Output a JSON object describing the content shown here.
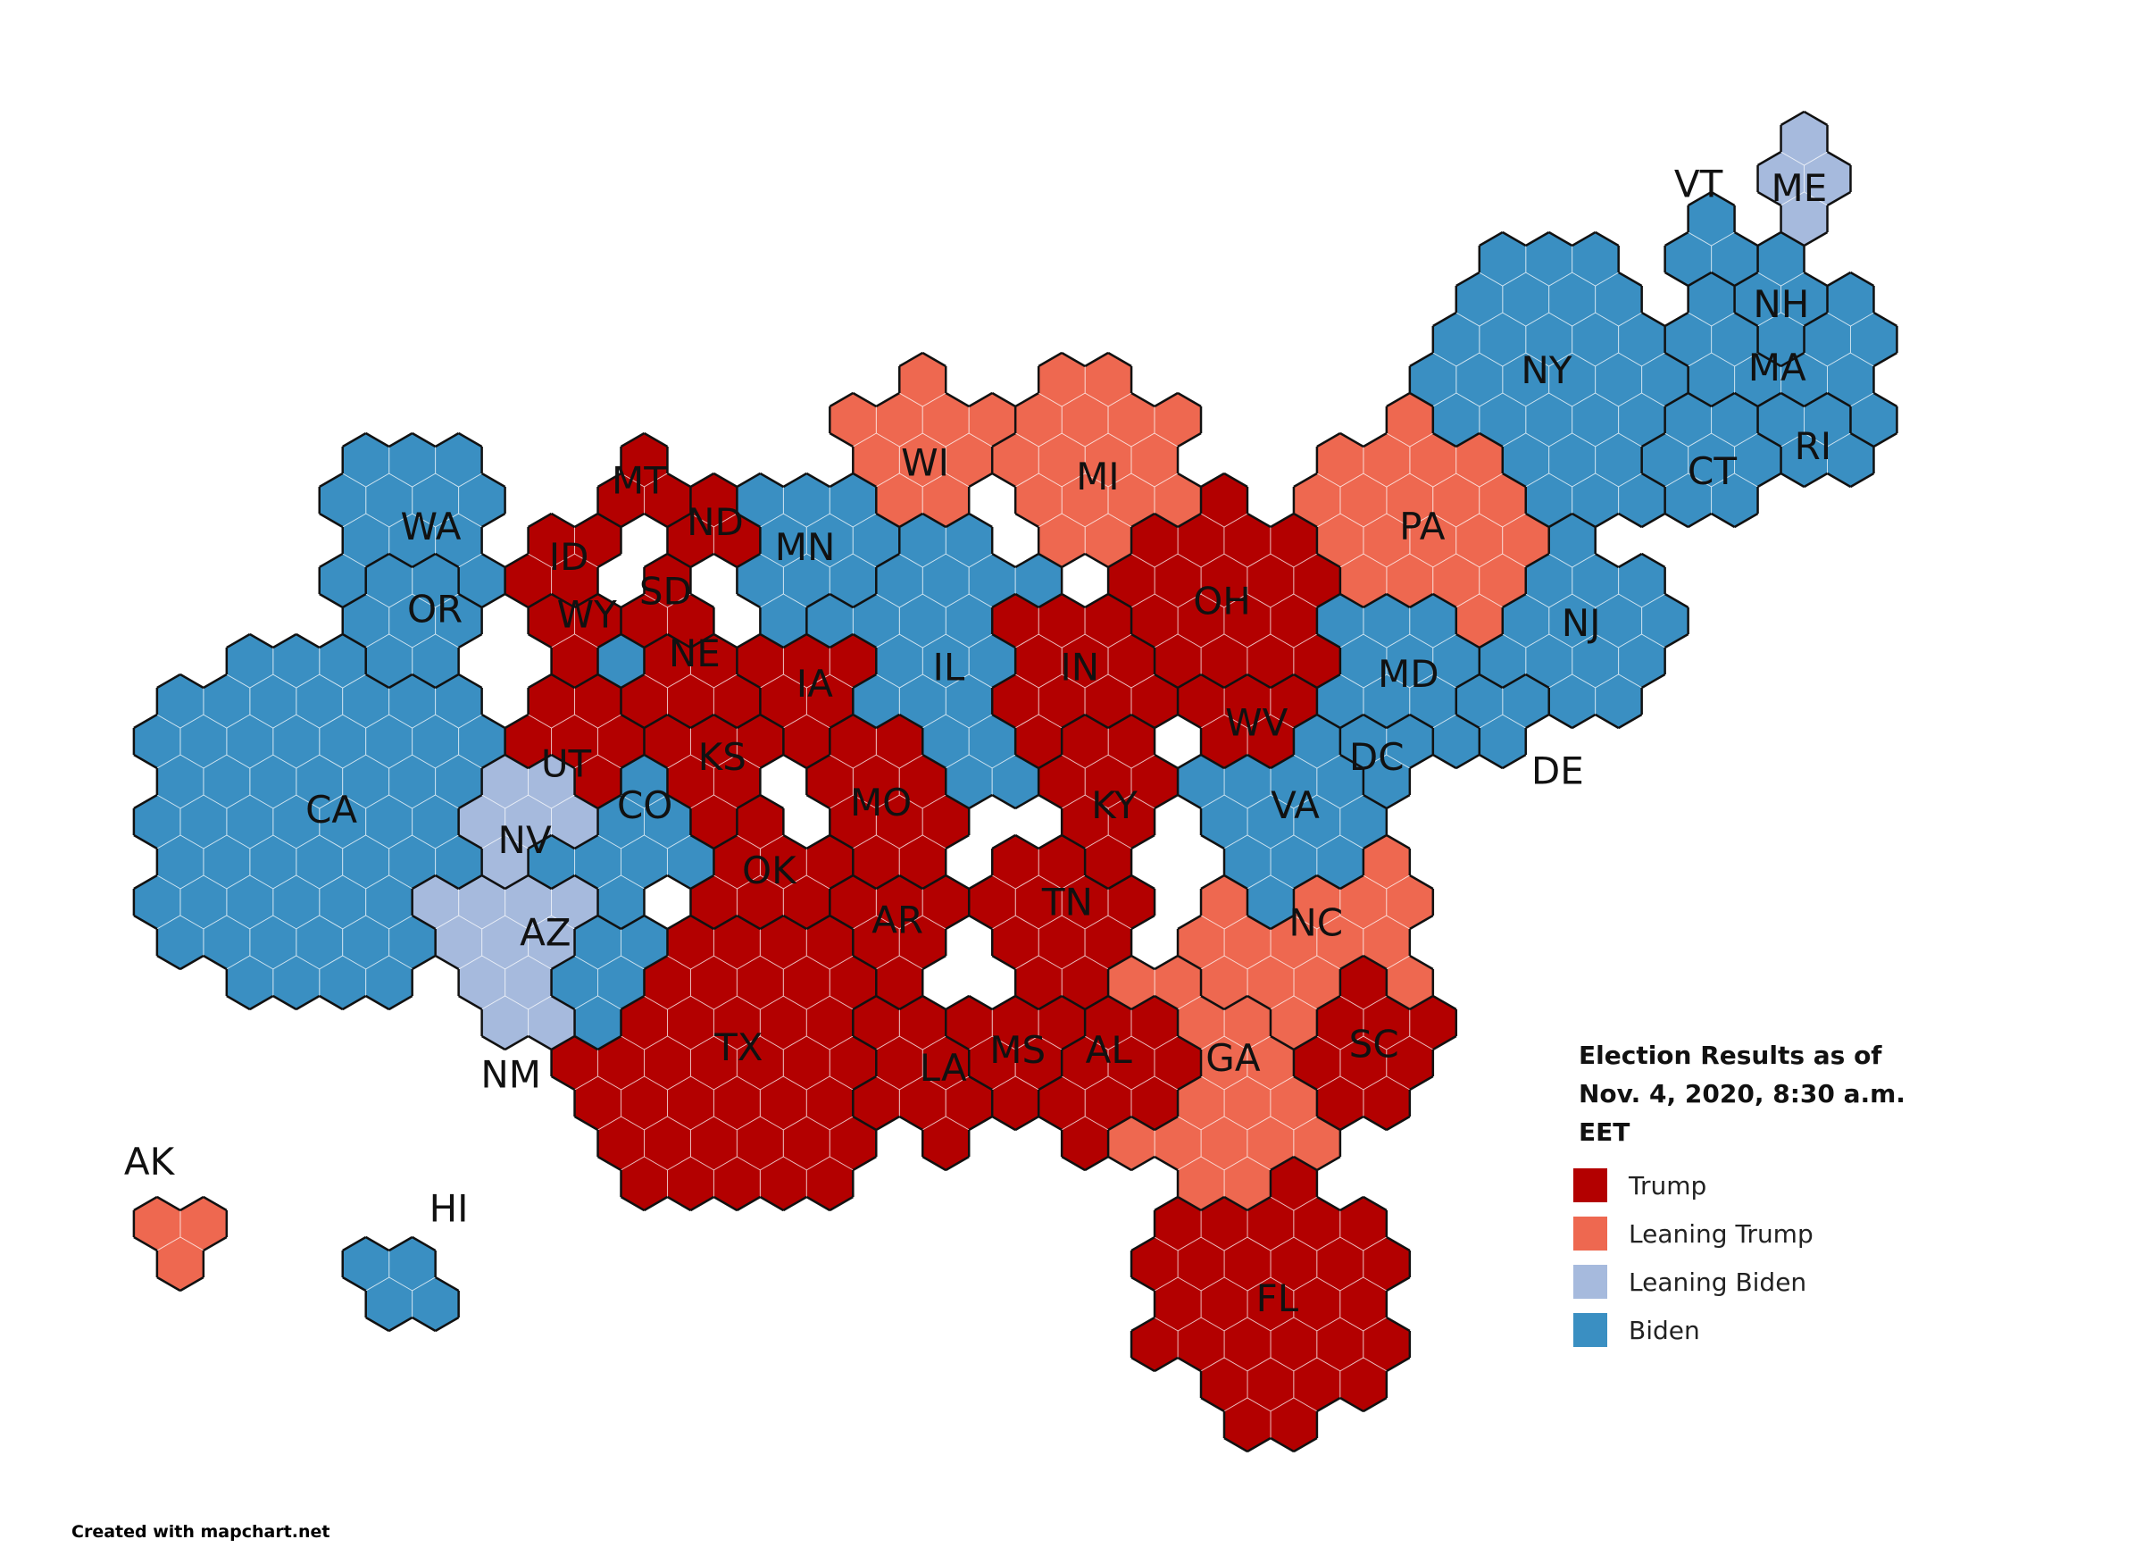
{
  "title": "Election Results as of Nov. 4, 2020, 8:30 a.m. EET",
  "legend": [
    {
      "name": "Trump",
      "color": "#b30000"
    },
    {
      "name": "Leaning Trump",
      "color": "#ee6850"
    },
    {
      "name": "Leaning Biden",
      "color": "#a6badd"
    },
    {
      "name": "Biden",
      "color": "#3a8fc2"
    }
  ],
  "states": [
    {
      "label": "WA",
      "result": "Biden"
    },
    {
      "label": "OR",
      "result": "Biden"
    },
    {
      "label": "CA",
      "result": "Biden"
    },
    {
      "label": "NV",
      "result": "Leaning Biden"
    },
    {
      "label": "AZ",
      "result": "Leaning Biden"
    },
    {
      "label": "ID",
      "result": "Trump"
    },
    {
      "label": "MT",
      "result": "Trump"
    },
    {
      "label": "WY",
      "result": "Trump"
    },
    {
      "label": "UT",
      "result": "Trump"
    },
    {
      "label": "CO",
      "result": "Biden"
    },
    {
      "label": "NM",
      "result": "Biden"
    },
    {
      "label": "ND",
      "result": "Trump"
    },
    {
      "label": "SD",
      "result": "Trump"
    },
    {
      "label": "NE",
      "result": "Trump"
    },
    {
      "label": "KS",
      "result": "Trump"
    },
    {
      "label": "OK",
      "result": "Trump"
    },
    {
      "label": "TX",
      "result": "Trump"
    },
    {
      "label": "MN",
      "result": "Biden"
    },
    {
      "label": "IA",
      "result": "Trump"
    },
    {
      "label": "MO",
      "result": "Trump"
    },
    {
      "label": "AR",
      "result": "Trump"
    },
    {
      "label": "LA",
      "result": "Trump"
    },
    {
      "label": "WI",
      "result": "Leaning Trump"
    },
    {
      "label": "IL",
      "result": "Biden"
    },
    {
      "label": "MI",
      "result": "Leaning Trump"
    },
    {
      "label": "IN",
      "result": "Trump"
    },
    {
      "label": "KY",
      "result": "Trump"
    },
    {
      "label": "TN",
      "result": "Trump"
    },
    {
      "label": "MS",
      "result": "Trump"
    },
    {
      "label": "AL",
      "result": "Trump"
    },
    {
      "label": "OH",
      "result": "Trump"
    },
    {
      "label": "WV",
      "result": "Trump"
    },
    {
      "label": "PA",
      "result": "Leaning Trump"
    },
    {
      "label": "NY",
      "result": "Biden"
    },
    {
      "label": "VT",
      "result": "Biden"
    },
    {
      "label": "ME",
      "result": "Leaning Biden"
    },
    {
      "label": "NH",
      "result": "Biden"
    },
    {
      "label": "MA",
      "result": "Biden"
    },
    {
      "label": "RI",
      "result": "Biden"
    },
    {
      "label": "CT",
      "result": "Biden"
    },
    {
      "label": "NJ",
      "result": "Biden"
    },
    {
      "label": "DE",
      "result": "Biden"
    },
    {
      "label": "MD",
      "result": "Biden"
    },
    {
      "label": "DC",
      "result": "Biden"
    },
    {
      "label": "VA",
      "result": "Biden"
    },
    {
      "label": "NC",
      "result": "Leaning Trump"
    },
    {
      "label": "SC",
      "result": "Trump"
    },
    {
      "label": "GA",
      "result": "Leaning Trump"
    },
    {
      "label": "FL",
      "result": "Trump"
    },
    {
      "label": "AK",
      "result": "Leaning Trump"
    },
    {
      "label": "HI",
      "result": "Biden"
    }
  ],
  "credit": "Created with mapchart.net"
}
